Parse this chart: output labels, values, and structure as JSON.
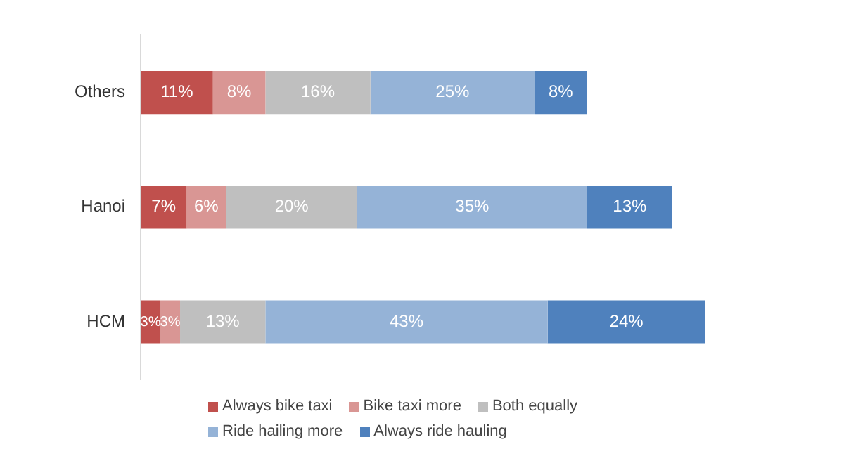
{
  "chart_data": {
    "type": "bar",
    "orientation": "horizontal",
    "stacked": true,
    "legend": "bottom",
    "data_labels": true,
    "tick_labels": "y",
    "categories": [
      "Others",
      "Hanoi",
      "HCM"
    ],
    "series": [
      {
        "name": "Always bike taxi",
        "color": "#c0504d",
        "values": [
          11,
          7,
          3
        ],
        "value_labels": [
          "11%",
          "7%",
          "3%"
        ]
      },
      {
        "name": "Bike taxi more",
        "color": "#d99694",
        "values": [
          8,
          6,
          3
        ],
        "value_labels": [
          "8%",
          "6%",
          "3%"
        ]
      },
      {
        "name": "Both equally",
        "color": "#bfbfbf",
        "values": [
          16,
          20,
          13
        ],
        "value_labels": [
          "16%",
          "20%",
          "13%"
        ]
      },
      {
        "name": "Ride hailing more",
        "color": "#95b3d7",
        "values": [
          25,
          35,
          43
        ],
        "value_labels": [
          "25%",
          "35%",
          "43%"
        ]
      },
      {
        "name": "Always ride hauling",
        "color": "#4f81bd",
        "values": [
          8,
          13,
          24
        ],
        "value_labels": [
          "8%",
          "13%",
          "24%"
        ]
      }
    ]
  }
}
